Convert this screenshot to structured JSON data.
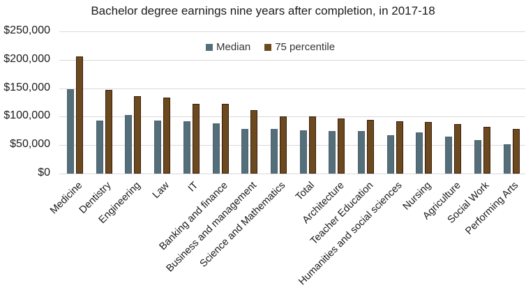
{
  "chart_data": {
    "type": "bar",
    "title": "Bachelor degree earnings nine years after completion, in 2017-18",
    "xlabel": "",
    "ylabel": "",
    "ylim": [
      0,
      250000
    ],
    "yticks": [
      "$0",
      "$50,000",
      "$100,000",
      "$150,000",
      "$200,000",
      "$250,000"
    ],
    "grid": true,
    "legend_position": "top-center-inside",
    "categories": [
      "Medicine",
      "Dentistry",
      "Engineering",
      "Law",
      "IT",
      "Banking and finance",
      "Business and management",
      "Science and Mathematics",
      "Total",
      "Architecture",
      "Teacher Education",
      "Humanities and social sciences",
      "Nursing",
      "Agriculture",
      "Social Work",
      "Performing Arts"
    ],
    "series": [
      {
        "name": "Median",
        "color": "#546e7a",
        "values": [
          148000,
          93000,
          103000,
          93000,
          92000,
          88000,
          79000,
          78000,
          76000,
          75000,
          75000,
          68000,
          72000,
          65000,
          59000,
          52000
        ]
      },
      {
        "name": "75 percentile",
        "color": "#6b4a20",
        "values": [
          206000,
          147000,
          136000,
          134000,
          123000,
          123000,
          111000,
          101000,
          101000,
          97000,
          94000,
          92000,
          91000,
          87000,
          82000,
          79000
        ]
      }
    ]
  }
}
